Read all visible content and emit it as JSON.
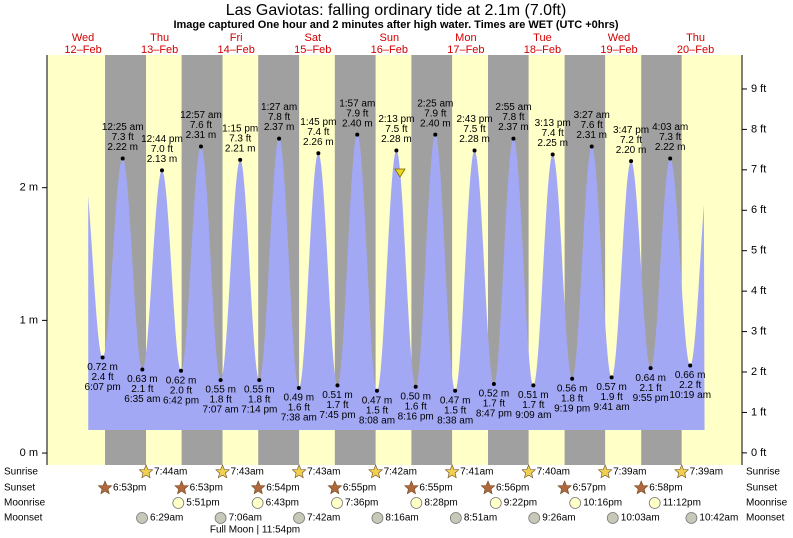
{
  "chart_data": {
    "type": "area",
    "title": "Las Gaviotas: falling  ordinary tide at 2.1m (7.0ft)",
    "subtitle": "Image captured One hour and 2 minutes after high water. Times are WET (UTC +0hrs)",
    "ylim": [
      -0.09,
      3.0
    ],
    "yticks": [
      {
        "value": 0,
        "label": "0 m"
      },
      {
        "value": 1,
        "label": "1 m"
      },
      {
        "value": 2,
        "label": "2 m"
      }
    ],
    "y2lim": [
      -0.3,
      9.84
    ],
    "y2ticks": [
      {
        "value": 0,
        "label": "0 ft"
      },
      {
        "value": 1,
        "label": "1 ft"
      },
      {
        "value": 2,
        "label": "2 ft"
      },
      {
        "value": 3,
        "label": "3 ft"
      },
      {
        "value": 4,
        "label": "4 ft"
      },
      {
        "value": 5,
        "label": "5 ft"
      },
      {
        "value": 6,
        "label": "6 ft"
      },
      {
        "value": 7,
        "label": "7 ft"
      },
      {
        "value": 8,
        "label": "8 ft"
      },
      {
        "value": 9,
        "label": "9 ft"
      }
    ],
    "color": "#a3a8f5",
    "day_color": "#ffffc8",
    "night_color": "#a0a0a0",
    "rows": [
      "Sunrise",
      "Sunset",
      "Moonrise",
      "Moonset"
    ],
    "moon_phase": "Full Moon | 11:54pm",
    "days": [
      {
        "weekday": "Wed",
        "date": "12–Feb",
        "sunset": "6:53pm",
        "tides": [
          {
            "time": "6:07 pm",
            "m": 0.72,
            "m_label": "0.72 m",
            "ft": 2.4,
            "ft_label": "2.4 ft"
          }
        ]
      },
      {
        "weekday": "Thu",
        "date": "13–Feb",
        "sunrise": "7:44am",
        "sunset": "6:53pm",
        "moonrise": "5:51pm",
        "moonset": "6:29am",
        "tides": [
          {
            "time": "12:25 am",
            "m": 2.22,
            "m_label": "2.22 m",
            "ft": 7.3,
            "ft_label": "7.3 ft"
          },
          {
            "time": "6:35 am",
            "m": 0.63,
            "m_label": "0.63 m",
            "ft": 2.1,
            "ft_label": "2.1 ft"
          },
          {
            "time": "12:44 pm",
            "m": 2.13,
            "m_label": "2.13 m",
            "ft": 7.0,
            "ft_label": "7.0 ft"
          },
          {
            "time": "6:42 pm",
            "m": 0.62,
            "m_label": "0.62 m",
            "ft": 2.0,
            "ft_label": "2.0 ft"
          }
        ]
      },
      {
        "weekday": "Fri",
        "date": "14–Feb",
        "sunrise": "7:43am",
        "sunset": "6:54pm",
        "moonrise": "6:43pm",
        "moonset": "7:06am",
        "tides": [
          {
            "time": "12:57 am",
            "m": 2.31,
            "m_label": "2.31 m",
            "ft": 7.6,
            "ft_label": "7.6 ft"
          },
          {
            "time": "7:07 am",
            "m": 0.55,
            "m_label": "0.55 m",
            "ft": 1.8,
            "ft_label": "1.8 ft"
          },
          {
            "time": "1:15 pm",
            "m": 2.21,
            "m_label": "2.21 m",
            "ft": 7.3,
            "ft_label": "7.3 ft"
          },
          {
            "time": "7:14 pm",
            "m": 0.55,
            "m_label": "0.55 m",
            "ft": 1.8,
            "ft_label": "1.8 ft"
          }
        ]
      },
      {
        "weekday": "Sat",
        "date": "15–Feb",
        "sunrise": "7:43am",
        "sunset": "6:55pm",
        "moonrise": "7:36pm",
        "moonset": "7:42am",
        "tides": [
          {
            "time": "1:27 am",
            "m": 2.37,
            "m_label": "2.37 m",
            "ft": 7.8,
            "ft_label": "7.8 ft"
          },
          {
            "time": "7:38 am",
            "m": 0.49,
            "m_label": "0.49 m",
            "ft": 1.6,
            "ft_label": "1.6 ft"
          },
          {
            "time": "1:45 pm",
            "m": 2.26,
            "m_label": "2.26 m",
            "ft": 7.4,
            "ft_label": "7.4 ft"
          },
          {
            "time": "7:45 pm",
            "m": 0.51,
            "m_label": "0.51 m",
            "ft": 1.7,
            "ft_label": "1.7 ft"
          }
        ]
      },
      {
        "weekday": "Sun",
        "date": "16–Feb",
        "sunrise": "7:42am",
        "sunset": "6:55pm",
        "moonrise": "8:28pm",
        "moonset": "8:16am",
        "tides": [
          {
            "time": "1:57 am",
            "m": 2.4,
            "m_label": "2.40 m",
            "ft": 7.9,
            "ft_label": "7.9 ft"
          },
          {
            "time": "8:08 am",
            "m": 0.47,
            "m_label": "0.47 m",
            "ft": 1.5,
            "ft_label": "1.5 ft"
          },
          {
            "time": "2:13 pm",
            "m": 2.28,
            "m_label": "2.28 m",
            "ft": 7.5,
            "ft_label": "7.5 ft"
          },
          {
            "time": "8:16 pm",
            "m": 0.5,
            "m_label": "0.50 m",
            "ft": 1.6,
            "ft_label": "1.6 ft"
          }
        ]
      },
      {
        "weekday": "Mon",
        "date": "17–Feb",
        "sunrise": "7:41am",
        "sunset": "6:56pm",
        "moonrise": "9:22pm",
        "moonset": "8:51am",
        "tides": [
          {
            "time": "2:25 am",
            "m": 2.4,
            "m_label": "2.40 m",
            "ft": 7.9,
            "ft_label": "7.9 ft"
          },
          {
            "time": "8:38 am",
            "m": 0.47,
            "m_label": "0.47 m",
            "ft": 1.5,
            "ft_label": "1.5 ft"
          },
          {
            "time": "2:43 pm",
            "m": 2.28,
            "m_label": "2.28 m",
            "ft": 7.5,
            "ft_label": "7.5 ft"
          },
          {
            "time": "8:47 pm",
            "m": 0.52,
            "m_label": "0.52 m",
            "ft": 1.7,
            "ft_label": "1.7 ft"
          }
        ]
      },
      {
        "weekday": "Tue",
        "date": "18–Feb",
        "sunrise": "7:40am",
        "sunset": "6:57pm",
        "moonrise": "10:16pm",
        "moonset": "9:26am",
        "tides": [
          {
            "time": "2:55 am",
            "m": 2.37,
            "m_label": "2.37 m",
            "ft": 7.8,
            "ft_label": "7.8 ft"
          },
          {
            "time": "9:09 am",
            "m": 0.51,
            "m_label": "0.51 m",
            "ft": 1.7,
            "ft_label": "1.7 ft"
          },
          {
            "time": "3:13 pm",
            "m": 2.25,
            "m_label": "2.25 m",
            "ft": 7.4,
            "ft_label": "7.4 ft"
          },
          {
            "time": "9:19 pm",
            "m": 0.56,
            "m_label": "0.56 m",
            "ft": 1.8,
            "ft_label": "1.8 ft"
          }
        ]
      },
      {
        "weekday": "Wed",
        "date": "19–Feb",
        "sunrise": "7:39am",
        "sunset": "6:58pm",
        "moonrise": "11:12pm",
        "moonset": "10:03am",
        "tides": [
          {
            "time": "3:27 am",
            "m": 2.31,
            "m_label": "2.31 m",
            "ft": 7.6,
            "ft_label": "7.6 ft"
          },
          {
            "time": "9:41 am",
            "m": 0.57,
            "m_label": "0.57 m",
            "ft": 1.9,
            "ft_label": "1.9 ft"
          },
          {
            "time": "3:47 pm",
            "m": 2.2,
            "m_label": "2.20 m",
            "ft": 7.2,
            "ft_label": "7.2 ft"
          },
          {
            "time": "9:55 pm",
            "m": 0.64,
            "m_label": "0.64 m",
            "ft": 2.1,
            "ft_label": "2.1 ft"
          }
        ]
      },
      {
        "weekday": "Thu",
        "date": "20–Feb",
        "sunrise": "7:39am",
        "moonset": "10:42am",
        "tides": [
          {
            "time": "4:03 am",
            "m": 2.22,
            "m_label": "2.22 m",
            "ft": 7.3,
            "ft_label": "7.3 ft"
          },
          {
            "time": "10:19 am",
            "m": 0.66,
            "m_label": "0.66 m",
            "ft": 2.2,
            "ft_label": "2.2 ft"
          }
        ]
      }
    ]
  }
}
